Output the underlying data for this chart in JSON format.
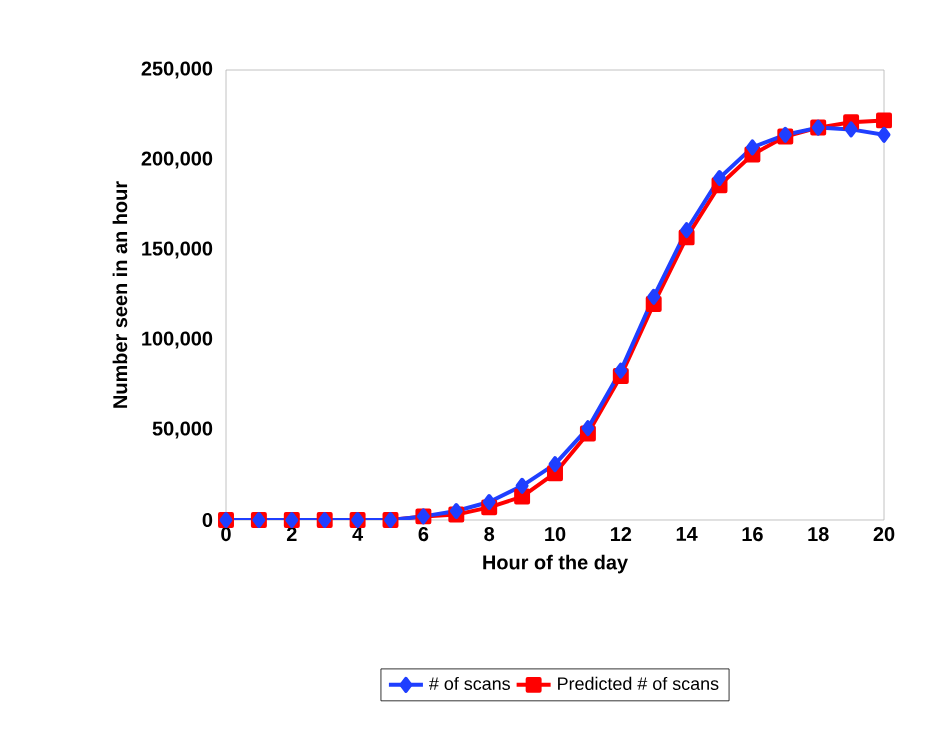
{
  "chart_data": {
    "type": "line",
    "xlabel": "Hour of the day",
    "ylabel": "Number seen in an hour",
    "x": [
      0,
      1,
      2,
      3,
      4,
      5,
      6,
      7,
      8,
      9,
      10,
      11,
      12,
      13,
      14,
      15,
      16,
      17,
      18,
      19,
      20
    ],
    "series": [
      {
        "name": "# of scans",
        "color": "#1f3fff",
        "marker": "diamond",
        "values": [
          0,
          0,
          0,
          0,
          0,
          0,
          2000,
          5000,
          10000,
          19000,
          31000,
          51000,
          83000,
          124000,
          161000,
          190000,
          207000,
          214000,
          218000,
          217000,
          214000
        ]
      },
      {
        "name": "Predicted # of scans",
        "color": "#ff0000",
        "marker": "square",
        "values": [
          0,
          0,
          0,
          0,
          0,
          0,
          2000,
          3000,
          7000,
          13000,
          26000,
          48000,
          80000,
          120000,
          157000,
          186000,
          203000,
          213000,
          218000,
          221000,
          222000
        ]
      }
    ],
    "xlim": [
      0,
      20
    ],
    "xticks": [
      0,
      2,
      4,
      6,
      8,
      10,
      12,
      14,
      16,
      18,
      20
    ],
    "ylim": [
      0,
      250000
    ],
    "yticks": [
      {
        "value": 0,
        "label": "0"
      },
      {
        "value": 50000,
        "label": "50,000"
      },
      {
        "value": 100000,
        "label": "100,000"
      },
      {
        "value": 150000,
        "label": "150,000"
      },
      {
        "value": 200000,
        "label": "200,000"
      },
      {
        "value": 250000,
        "label": "250,000"
      }
    ],
    "legend": "bottom",
    "grid": false,
    "line_style": "solid"
  }
}
